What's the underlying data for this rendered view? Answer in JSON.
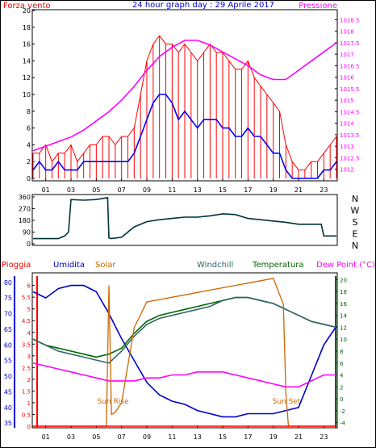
{
  "header": {
    "left_label": "Forza vento",
    "center_label": "24 hour graph day : 29 Aprile 2017",
    "right_label": "Pressione"
  },
  "colors": {
    "wind_gust": "#ff0000",
    "wind_avg": "#0000ff",
    "pressure": "#ff00ff",
    "direction": "#003333",
    "pioggia": "#ff0000",
    "umidita": "#0000cc",
    "solar": "#cc6600",
    "windchill": "#336666",
    "temperatura": "#006600",
    "dewpoint": "#ff00ff",
    "axis": "#000000",
    "grid": "#d0d0d0"
  },
  "chart_data": [
    {
      "type": "line",
      "title": "",
      "x_ticks": [
        "01",
        "03",
        "05",
        "07",
        "09",
        "11",
        "13",
        "15",
        "17",
        "19",
        "21",
        "23"
      ],
      "left_axis": {
        "label": "Forza vento",
        "ticks": [
          "0",
          "2",
          "4",
          "6",
          "8",
          "10",
          "12",
          "14",
          "16",
          "18",
          "20"
        ],
        "ylim": [
          0,
          20
        ]
      },
      "right_axis": {
        "label": "Pressione",
        "ticks": [
          "1012",
          "1012.5",
          "1013",
          "1013.5",
          "1014",
          "1014.5",
          "1015",
          "1015.5",
          "1016",
          "1016.5",
          "1017",
          "1017.5",
          "1018",
          "1018.5"
        ],
        "ylim": [
          1011.6,
          1018.9
        ]
      },
      "series": [
        {
          "name": "Raffica",
          "axis": "left",
          "style": "spiky",
          "x": [
            0,
            0.5,
            1,
            1.5,
            2,
            2.5,
            3,
            3.5,
            4,
            4.5,
            5,
            5.5,
            6,
            6.5,
            7,
            7.5,
            8,
            8.5,
            9,
            9.5,
            10,
            10.5,
            11,
            11.5,
            12,
            12.5,
            13,
            13.5,
            14,
            14.5,
            15,
            15.5,
            16,
            16.5,
            17,
            17.5,
            18,
            18.5,
            19,
            19.5,
            20,
            20.5,
            21,
            21.5,
            22,
            22.5,
            23,
            23.5,
            24
          ],
          "values": [
            3,
            3,
            4,
            2,
            3,
            3,
            4,
            2,
            3,
            4,
            4,
            5,
            5,
            4,
            5,
            5,
            6,
            10,
            14,
            16,
            17,
            16,
            16,
            15,
            16,
            15,
            14,
            15,
            16,
            15,
            15,
            14,
            13,
            13,
            14,
            12,
            11,
            10,
            9,
            8,
            4,
            2,
            1,
            1,
            2,
            2,
            3,
            4,
            5
          ]
        },
        {
          "name": "Media",
          "axis": "left",
          "style": "line",
          "x": [
            0,
            0.5,
            1,
            1.5,
            2,
            2.5,
            3,
            3.5,
            4,
            4.5,
            5,
            5.5,
            6,
            6.5,
            7,
            7.5,
            8,
            8.5,
            9,
            9.5,
            10,
            10.5,
            11,
            11.5,
            12,
            12.5,
            13,
            13.5,
            14,
            14.5,
            15,
            15.5,
            16,
            16.5,
            17,
            17.5,
            18,
            18.5,
            19,
            19.5,
            20,
            20.5,
            21,
            21.5,
            22,
            22.5,
            23,
            23.5,
            24
          ],
          "values": [
            1,
            2,
            1,
            1,
            2,
            1,
            1,
            1,
            2,
            2,
            2,
            2,
            2,
            2,
            2,
            2,
            3,
            5,
            7,
            9,
            10,
            10,
            9,
            7,
            8,
            7,
            6,
            7,
            7,
            7,
            6,
            6,
            5,
            5,
            6,
            5,
            5,
            4,
            3,
            3,
            1,
            0,
            0,
            0,
            0,
            0,
            1,
            1,
            2
          ]
        },
        {
          "name": "Pressione",
          "axis": "right",
          "style": "line",
          "x": [
            0,
            1,
            2,
            3,
            4,
            5,
            6,
            7,
            8,
            9,
            10,
            11,
            12,
            13,
            14,
            15,
            16,
            17,
            18,
            19,
            20,
            21,
            22,
            23,
            24
          ],
          "values": [
            1012.8,
            1013.0,
            1013.2,
            1013.4,
            1013.7,
            1014.1,
            1014.5,
            1015.0,
            1015.6,
            1016.3,
            1016.9,
            1017.3,
            1017.6,
            1017.6,
            1017.4,
            1017.1,
            1016.8,
            1016.5,
            1016.1,
            1015.9,
            1015.9,
            1016.3,
            1016.7,
            1017.1,
            1017.5
          ]
        }
      ]
    },
    {
      "type": "line",
      "title": "",
      "left_axis": {
        "label": "",
        "ticks": [
          "0",
          "90",
          "180",
          "270",
          "360"
        ],
        "ylim": [
          0,
          360
        ]
      },
      "right_labels": [
        "N",
        "W",
        "S",
        "E",
        "N"
      ],
      "series": [
        {
          "name": "Direzione",
          "x": [
            0,
            1,
            2,
            2.5,
            2.8,
            3,
            4,
            5,
            5.9,
            6.0,
            6.2,
            7,
            8,
            9,
            10,
            11,
            12,
            13,
            14,
            15,
            16,
            17,
            18,
            19,
            20,
            21,
            22,
            22.8,
            23,
            24
          ],
          "values": [
            40,
            40,
            40,
            60,
            90,
            340,
            335,
            340,
            355,
            45,
            40,
            50,
            130,
            170,
            185,
            195,
            205,
            205,
            215,
            230,
            225,
            195,
            185,
            175,
            165,
            150,
            150,
            150,
            60,
            60
          ]
        }
      ]
    },
    {
      "type": "line",
      "title": "",
      "legend": [
        "Pioggia",
        "Umidita",
        "Solar",
        "Windchill",
        "Temperatura",
        "Dew Point (°C)"
      ],
      "left_axis": {
        "label": "Umidita",
        "ticks": [
          "35",
          "40",
          "45",
          "50",
          "55",
          "60",
          "65",
          "70",
          "75",
          "80"
        ],
        "ylim": [
          34,
          82
        ]
      },
      "rain_axis": {
        "label": "Pioggia",
        "ticks": [
          "0",
          "0.5",
          "1",
          "1.5",
          "2",
          "2.5",
          "3",
          "3.5",
          "4",
          "4.5",
          "5",
          "5.5",
          "6"
        ],
        "ylim": [
          0,
          6.4
        ]
      },
      "right_axis": {
        "label": "Dew Point (°C)",
        "ticks": [
          "-4",
          "-2",
          "0",
          "2",
          "4",
          "6",
          "8",
          "10",
          "12",
          "14",
          "16",
          "18",
          "20"
        ],
        "ylim": [
          -4.6,
          20.6
        ]
      },
      "annotations": [
        "Sun Rise",
        "Sun Set"
      ],
      "series": [
        {
          "name": "Umidita",
          "axis": "left",
          "x": [
            0,
            1,
            2,
            3,
            4,
            5,
            6,
            7,
            8,
            9,
            10,
            11,
            12,
            13,
            14,
            15,
            16,
            17,
            18,
            19,
            20,
            21,
            22,
            23,
            24
          ],
          "values": [
            77,
            75,
            78,
            79,
            79,
            77,
            70,
            62,
            55,
            48,
            44,
            42,
            41,
            39,
            38,
            37,
            37,
            38,
            38,
            38,
            39,
            40,
            50,
            60,
            66
          ]
        },
        {
          "name": "Temperatura",
          "axis": "right",
          "x": [
            0,
            1,
            2,
            3,
            4,
            5,
            6,
            7,
            8,
            9,
            10,
            11,
            12,
            13,
            14,
            15,
            16,
            17,
            18,
            19,
            20,
            21,
            22,
            23,
            24
          ],
          "values": [
            10,
            9,
            8.5,
            8,
            7.5,
            7,
            7.5,
            8.5,
            11,
            13,
            14,
            14.5,
            15,
            15.5,
            16,
            16.5,
            17,
            17,
            16.5,
            16,
            15,
            14,
            13,
            12.5,
            12
          ]
        },
        {
          "name": "Windchill",
          "axis": "right",
          "x": [
            0,
            1,
            2,
            3,
            4,
            5,
            6,
            7,
            8,
            9,
            10,
            11,
            12,
            13,
            14,
            15,
            16,
            17,
            18,
            19,
            20,
            21,
            22,
            23,
            24
          ],
          "values": [
            10,
            9,
            8,
            7.5,
            7,
            6.5,
            6,
            8,
            10.5,
            12.5,
            13.5,
            14,
            14.5,
            15,
            15.5,
            16.5,
            17,
            17,
            16.5,
            16,
            15,
            14,
            13,
            12.5,
            12
          ]
        },
        {
          "name": "Dew Point (°C)",
          "axis": "right",
          "x": [
            0,
            1,
            2,
            3,
            4,
            5,
            6,
            7,
            8,
            9,
            10,
            11,
            12,
            13,
            14,
            15,
            16,
            17,
            18,
            19,
            20,
            21,
            22,
            23,
            24
          ],
          "values": [
            6,
            5.5,
            5,
            4.5,
            4,
            3.5,
            3,
            3,
            3,
            3.5,
            3.5,
            4,
            4,
            4.5,
            4.5,
            4.5,
            4,
            3.5,
            3,
            2.5,
            2,
            2,
            3,
            4,
            4
          ]
        },
        {
          "name": "Solar",
          "axis": "rain",
          "x": [
            0,
            5.8,
            6.0,
            6.2,
            6.5,
            7,
            8,
            9,
            10,
            11,
            12,
            13,
            14,
            15,
            16,
            17,
            18,
            19,
            19.8,
            20.0,
            20.2,
            21,
            24
          ],
          "values": [
            0,
            0,
            6.0,
            0.5,
            0.6,
            1.0,
            4.2,
            5.3,
            5.4,
            5.5,
            5.6,
            5.7,
            5.8,
            5.9,
            6.0,
            6.1,
            6.2,
            6.3,
            5.2,
            1.4,
            0,
            0,
            0
          ]
        },
        {
          "name": "Pioggia",
          "axis": "rain",
          "x": [
            0,
            24
          ],
          "values": [
            0,
            0
          ]
        }
      ]
    }
  ]
}
